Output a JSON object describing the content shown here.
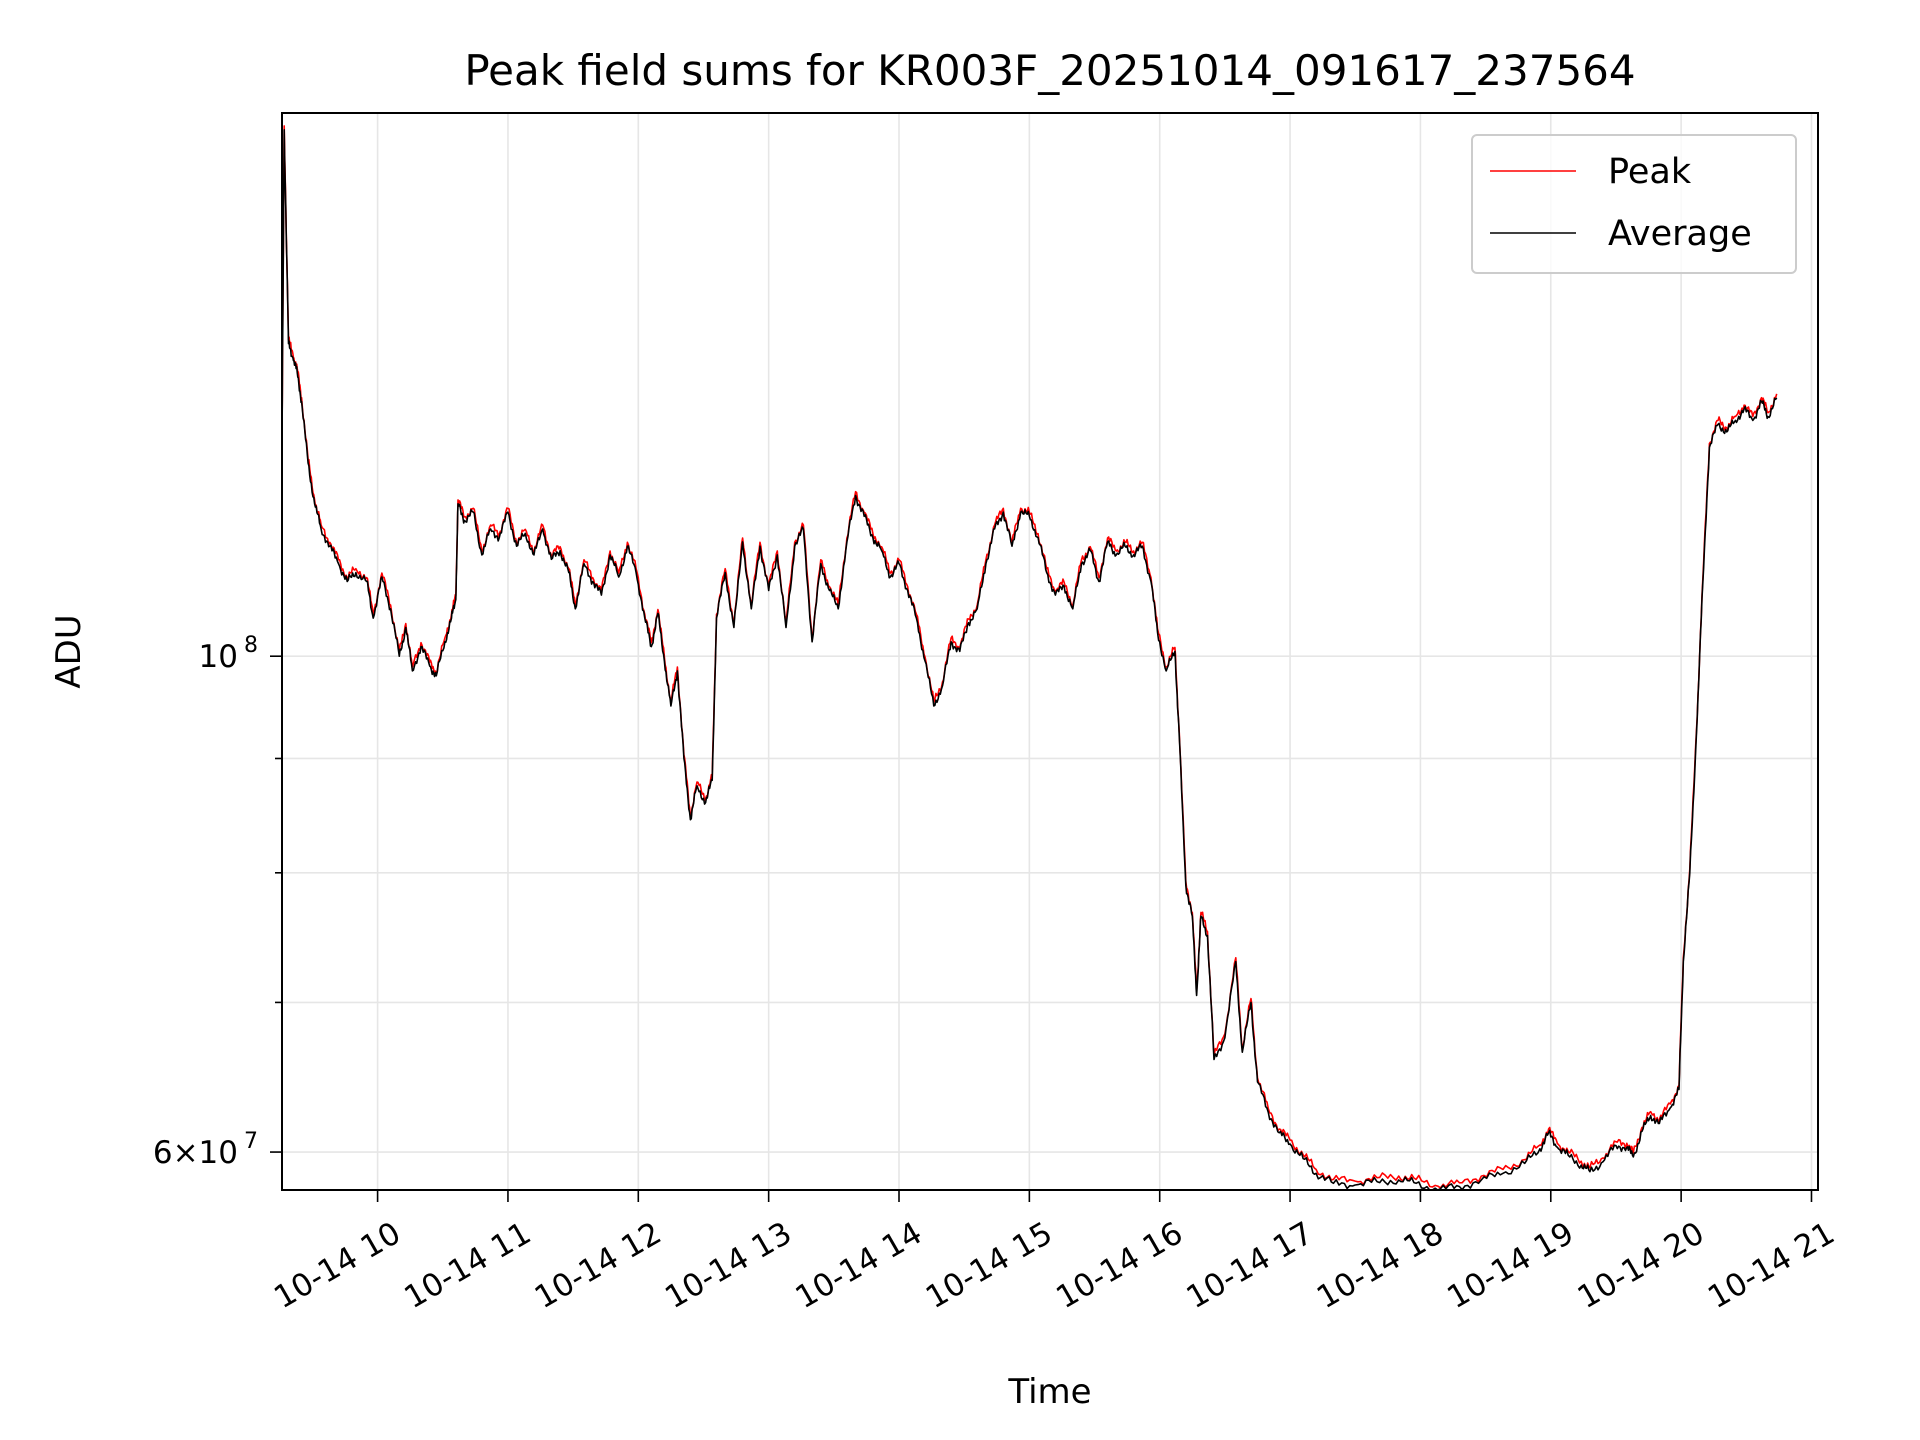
{
  "chart_data": {
    "type": "line",
    "title": "Peak field sums for KR003F_20251014_091617_237564",
    "xlabel": "Time",
    "ylabel": "ADU",
    "y_scale": "log",
    "ylim": [
      57700000,
      175000000
    ],
    "xlim": [
      "2025-10-14 09:16",
      "2025-10-14 21:03"
    ],
    "grid": true,
    "legend_position": "upper right",
    "x_tick_labels": [
      "10-14 10",
      "10-14 11",
      "10-14 12",
      "10-14 13",
      "10-14 14",
      "10-14 15",
      "10-14 16",
      "10-14 17",
      "10-14 18",
      "10-14 19",
      "10-14 20",
      "10-14 21"
    ],
    "x_tick_times": [
      "2025-10-14 10:00",
      "2025-10-14 11:00",
      "2025-10-14 12:00",
      "2025-10-14 13:00",
      "2025-10-14 14:00",
      "2025-10-14 15:00",
      "2025-10-14 16:00",
      "2025-10-14 17:00",
      "2025-10-14 18:00",
      "2025-10-14 19:00",
      "2025-10-14 20:00",
      "2025-10-14 21:00"
    ],
    "y_major_ticks": [
      {
        "value": 60000000,
        "label": "6×10",
        "exp": "7"
      },
      {
        "value": 100000000,
        "label": "10",
        "exp": "8"
      }
    ],
    "y_minor_ticks": [
      70000000,
      80000000,
      90000000
    ],
    "series": [
      {
        "name": "Peak",
        "color": "#ff0000",
        "offset_factor": 1.004
      },
      {
        "name": "Average",
        "color": "#000000",
        "offset_factor": 1.0,
        "points": [
          [
            "2025-10-14 09:16",
            125000000
          ],
          [
            "2025-10-14 09:17",
            172000000
          ],
          [
            "2025-10-14 09:19",
            138000000
          ],
          [
            "2025-10-14 09:21",
            136000000
          ],
          [
            "2025-10-14 09:23",
            134000000
          ],
          [
            "2025-10-14 09:25",
            130000000
          ],
          [
            "2025-10-14 09:28",
            122000000
          ],
          [
            "2025-10-14 09:31",
            117000000
          ],
          [
            "2025-10-14 09:34",
            114000000
          ],
          [
            "2025-10-14 09:38",
            112000000
          ],
          [
            "2025-10-14 09:42",
            110000000
          ],
          [
            "2025-10-14 09:46",
            108000000
          ],
          [
            "2025-10-14 09:50",
            109000000
          ],
          [
            "2025-10-14 09:55",
            108000000
          ],
          [
            "2025-10-14 09:58",
            104000000
          ],
          [
            "2025-10-14 10:02",
            108500000
          ],
          [
            "2025-10-14 10:06",
            105000000
          ],
          [
            "2025-10-14 10:10",
            100000000
          ],
          [
            "2025-10-14 10:13",
            103000000
          ],
          [
            "2025-10-14 10:16",
            98500000
          ],
          [
            "2025-10-14 10:20",
            101000000
          ],
          [
            "2025-10-14 10:24",
            99000000
          ],
          [
            "2025-10-14 10:27",
            98000000
          ],
          [
            "2025-10-14 10:31",
            101500000
          ],
          [
            "2025-10-14 10:34",
            104000000
          ],
          [
            "2025-10-14 10:36",
            106000000
          ],
          [
            "2025-10-14 10:37",
            117000000
          ],
          [
            "2025-10-14 10:40",
            115000000
          ],
          [
            "2025-10-14 10:44",
            116000000
          ],
          [
            "2025-10-14 10:48",
            111000000
          ],
          [
            "2025-10-14 10:52",
            114000000
          ],
          [
            "2025-10-14 10:56",
            113000000
          ],
          [
            "2025-10-14 11:00",
            116000000
          ],
          [
            "2025-10-14 11:04",
            112000000
          ],
          [
            "2025-10-14 11:08",
            113500000
          ],
          [
            "2025-10-14 11:12",
            111000000
          ],
          [
            "2025-10-14 11:16",
            114000000
          ],
          [
            "2025-10-14 11:20",
            110500000
          ],
          [
            "2025-10-14 11:24",
            111500000
          ],
          [
            "2025-10-14 11:28",
            109000000
          ],
          [
            "2025-10-14 11:31",
            105000000
          ],
          [
            "2025-10-14 11:35",
            110000000
          ],
          [
            "2025-10-14 11:39",
            108000000
          ],
          [
            "2025-10-14 11:43",
            106500000
          ],
          [
            "2025-10-14 11:47",
            111000000
          ],
          [
            "2025-10-14 11:51",
            108500000
          ],
          [
            "2025-10-14 11:55",
            112000000
          ],
          [
            "2025-10-14 11:59",
            109000000
          ],
          [
            "2025-10-14 12:03",
            104000000
          ],
          [
            "2025-10-14 12:06",
            101000000
          ],
          [
            "2025-10-14 12:09",
            104500000
          ],
          [
            "2025-10-14 12:12",
            99500000
          ],
          [
            "2025-10-14 12:15",
            95000000
          ],
          [
            "2025-10-14 12:18",
            98500000
          ],
          [
            "2025-10-14 12:21",
            90000000
          ],
          [
            "2025-10-14 12:24",
            84500000
          ],
          [
            "2025-10-14 12:27",
            87500000
          ],
          [
            "2025-10-14 12:31",
            86000000
          ],
          [
            "2025-10-14 12:34",
            88000000
          ],
          [
            "2025-10-14 12:36",
            104000000
          ],
          [
            "2025-10-14 12:40",
            109000000
          ],
          [
            "2025-10-14 12:44",
            103000000
          ],
          [
            "2025-10-14 12:48",
            112500000
          ],
          [
            "2025-10-14 12:52",
            105000000
          ],
          [
            "2025-10-14 12:56",
            112000000
          ],
          [
            "2025-10-14 13:00",
            107000000
          ],
          [
            "2025-10-14 13:04",
            111000000
          ],
          [
            "2025-10-14 13:08",
            103000000
          ],
          [
            "2025-10-14 13:12",
            112000000
          ],
          [
            "2025-10-14 13:16",
            114000000
          ],
          [
            "2025-10-14 13:20",
            101500000
          ],
          [
            "2025-10-14 13:24",
            110000000
          ],
          [
            "2025-10-14 13:28",
            107000000
          ],
          [
            "2025-10-14 13:32",
            105000000
          ],
          [
            "2025-10-14 13:36",
            112500000
          ],
          [
            "2025-10-14 13:40",
            118000000
          ],
          [
            "2025-10-14 13:44",
            115500000
          ],
          [
            "2025-10-14 13:48",
            113000000
          ],
          [
            "2025-10-14 13:52",
            111500000
          ],
          [
            "2025-10-14 13:56",
            108500000
          ],
          [
            "2025-10-14 14:00",
            110000000
          ],
          [
            "2025-10-14 14:04",
            107000000
          ],
          [
            "2025-10-14 14:08",
            104000000
          ],
          [
            "2025-10-14 14:12",
            99500000
          ],
          [
            "2025-10-14 14:16",
            95000000
          ],
          [
            "2025-10-14 14:20",
            97000000
          ],
          [
            "2025-10-14 14:24",
            101500000
          ],
          [
            "2025-10-14 14:28",
            100500000
          ],
          [
            "2025-10-14 14:32",
            103500000
          ],
          [
            "2025-10-14 14:36",
            105000000
          ],
          [
            "2025-10-14 14:40",
            110000000
          ],
          [
            "2025-10-14 14:44",
            114000000
          ],
          [
            "2025-10-14 14:48",
            116000000
          ],
          [
            "2025-10-14 14:52",
            112000000
          ],
          [
            "2025-10-14 14:56",
            116000000
          ],
          [
            "2025-10-14 15:00",
            115500000
          ],
          [
            "2025-10-14 15:04",
            113000000
          ],
          [
            "2025-10-14 15:08",
            109000000
          ],
          [
            "2025-10-14 15:12",
            106500000
          ],
          [
            "2025-10-14 15:16",
            107500000
          ],
          [
            "2025-10-14 15:20",
            105000000
          ],
          [
            "2025-10-14 15:24",
            110000000
          ],
          [
            "2025-10-14 15:28",
            111500000
          ],
          [
            "2025-10-14 15:32",
            108000000
          ],
          [
            "2025-10-14 15:36",
            112500000
          ],
          [
            "2025-10-14 15:40",
            111000000
          ],
          [
            "2025-10-14 15:44",
            112000000
          ],
          [
            "2025-10-14 15:48",
            111000000
          ],
          [
            "2025-10-14 15:52",
            112000000
          ],
          [
            "2025-10-14 15:56",
            108000000
          ],
          [
            "2025-10-14 15:59",
            102500000
          ],
          [
            "2025-10-14 16:03",
            98500000
          ],
          [
            "2025-10-14 16:07",
            100500000
          ],
          [
            "2025-10-14 16:09",
            92000000
          ],
          [
            "2025-10-14 16:12",
            79000000
          ],
          [
            "2025-10-14 16:15",
            76500000
          ],
          [
            "2025-10-14 16:17",
            70500000
          ],
          [
            "2025-10-14 16:19",
            76500000
          ],
          [
            "2025-10-14 16:22",
            75000000
          ],
          [
            "2025-10-14 16:25",
            66000000
          ],
          [
            "2025-10-14 16:30",
            67500000
          ],
          [
            "2025-10-14 16:35",
            73000000
          ],
          [
            "2025-10-14 16:38",
            66500000
          ],
          [
            "2025-10-14 16:42",
            70000000
          ],
          [
            "2025-10-14 16:45",
            64500000
          ],
          [
            "2025-10-14 16:50",
            62500000
          ],
          [
            "2025-10-14 16:55",
            61200000
          ],
          [
            "2025-10-14 17:00",
            60500000
          ],
          [
            "2025-10-14 17:06",
            59600000
          ],
          [
            "2025-10-14 17:12",
            58700000
          ],
          [
            "2025-10-14 17:20",
            58100000
          ],
          [
            "2025-10-14 17:30",
            58000000
          ],
          [
            "2025-10-14 17:40",
            58200000
          ],
          [
            "2025-10-14 17:50",
            58300000
          ],
          [
            "2025-10-14 17:58",
            58100000
          ],
          [
            "2025-10-14 18:08",
            57700000
          ],
          [
            "2025-10-14 18:18",
            57900000
          ],
          [
            "2025-10-14 18:28",
            58300000
          ],
          [
            "2025-10-14 18:38",
            58700000
          ],
          [
            "2025-10-14 18:48",
            59300000
          ],
          [
            "2025-10-14 18:55",
            60200000
          ],
          [
            "2025-10-14 18:59",
            61200000
          ],
          [
            "2025-10-14 19:03",
            60300000
          ],
          [
            "2025-10-14 19:08",
            59800000
          ],
          [
            "2025-10-14 19:14",
            59200000
          ],
          [
            "2025-10-14 19:18",
            58800000
          ],
          [
            "2025-10-14 19:24",
            59400000
          ],
          [
            "2025-10-14 19:30",
            60400000
          ],
          [
            "2025-10-14 19:35",
            60300000
          ],
          [
            "2025-10-14 19:38",
            59700000
          ],
          [
            "2025-10-14 19:42",
            61300000
          ],
          [
            "2025-10-14 19:46",
            62300000
          ],
          [
            "2025-10-14 19:50",
            61800000
          ],
          [
            "2025-10-14 19:55",
            62800000
          ],
          [
            "2025-10-14 19:59",
            64000000
          ],
          [
            "2025-10-14 20:01",
            73000000
          ],
          [
            "2025-10-14 20:04",
            80000000
          ],
          [
            "2025-10-14 20:07",
            92000000
          ],
          [
            "2025-10-14 20:10",
            108000000
          ],
          [
            "2025-10-14 20:13",
            124000000
          ],
          [
            "2025-10-14 20:17",
            127000000
          ],
          [
            "2025-10-14 20:21",
            126000000
          ],
          [
            "2025-10-14 20:25",
            127500000
          ],
          [
            "2025-10-14 20:29",
            129000000
          ],
          [
            "2025-10-14 20:33",
            127500000
          ],
          [
            "2025-10-14 20:37",
            130000000
          ],
          [
            "2025-10-14 20:40",
            128000000
          ],
          [
            "2025-10-14 20:44",
            130500000
          ]
        ]
      }
    ]
  }
}
